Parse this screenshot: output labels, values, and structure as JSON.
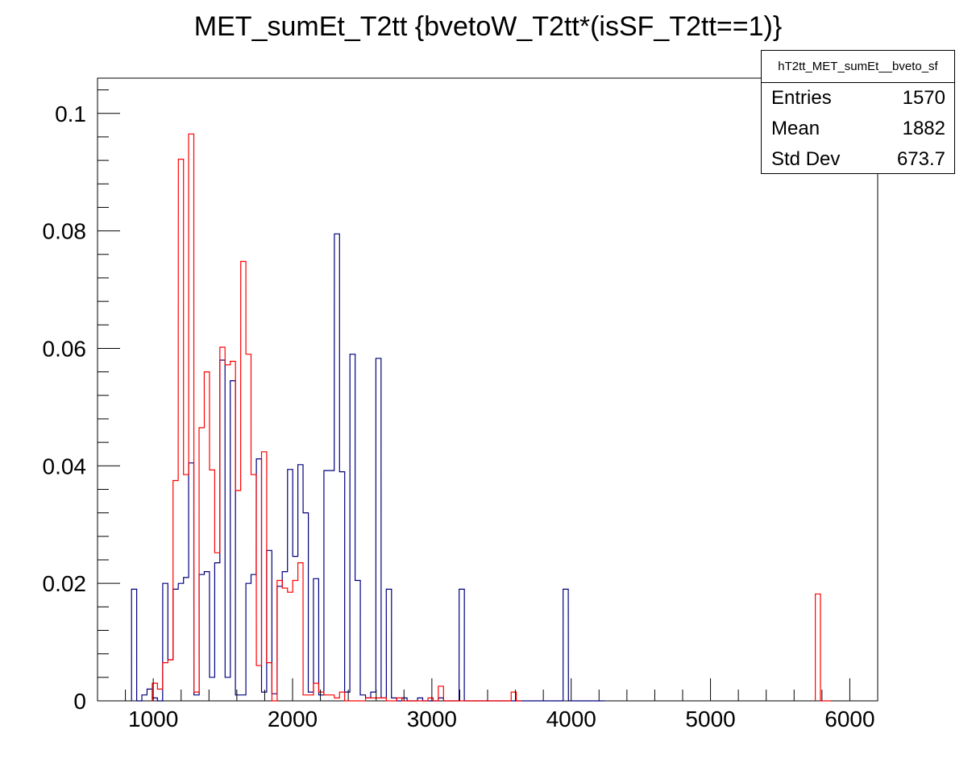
{
  "chart_data": {
    "type": "histogram",
    "title": "MET_sumEt_T2tt {bvetoW_T2tt*(isSF_T2tt==1)}",
    "xlabel": "",
    "ylabel": "",
    "xlim": [
      600,
      6200
    ],
    "ylim": [
      0,
      0.106
    ],
    "bin_width": 37.3,
    "x_ticks": [
      1000,
      2000,
      3000,
      4000,
      5000,
      6000
    ],
    "y_ticks": [
      0,
      0.02,
      0.04,
      0.06,
      0.08,
      0.1
    ],
    "y_tick_labels": [
      "0",
      "0.02",
      "0.04",
      "0.06",
      "0.08",
      "0.1"
    ],
    "grid": false,
    "stats_box": {
      "name": "hT2tt_MET_sumEt__bveto_sf",
      "rows": [
        {
          "label": "Entries",
          "value": "1570"
        },
        {
          "label": "Mean",
          "value": "1882"
        },
        {
          "label": "Std Dev",
          "value": "673.7"
        }
      ]
    },
    "series": [
      {
        "color": "#00007f",
        "x": [
          844,
          881,
          918,
          956,
          993,
          1030,
          1068,
          1105,
          1142,
          1180,
          1217,
          1254,
          1292,
          1329,
          1366,
          1404,
          1441,
          1478,
          1516,
          1553,
          1590,
          1628,
          1665,
          1702,
          1740,
          1777,
          1814,
          1852,
          1889,
          1926,
          1964,
          2001,
          2038,
          2076,
          2113,
          2150,
          2188,
          2225,
          2262,
          2300,
          2337,
          2374,
          2412,
          2449,
          2486,
          2524,
          2561,
          2598,
          2636,
          2673,
          2710,
          2748,
          2785,
          2822,
          2860,
          2897,
          2934,
          2972,
          3009,
          3046,
          3084,
          3121,
          3158,
          3196,
          3233,
          3270,
          3308,
          3345,
          3382,
          3420,
          3457,
          3494,
          3532,
          3569,
          3606,
          3644,
          3681,
          3718,
          3756,
          3793,
          3830,
          3868,
          3905,
          3942,
          3980,
          4017,
          4054,
          4092,
          4129,
          4166,
          4204
        ],
        "values": [
          0.019,
          0,
          0.001,
          0.002,
          0.0005,
          0,
          0.02,
          0.007,
          0.019,
          0.02,
          0.021,
          0.0405,
          0.001,
          0.0215,
          0.022,
          0.004,
          0.0235,
          0.058,
          0.004,
          0.0545,
          0.001,
          0.001,
          0.02,
          0.0215,
          0.0412,
          0.0015,
          0.0256,
          0.0012,
          0.0195,
          0.022,
          0.0394,
          0.0246,
          0.0402,
          0.032,
          0.0015,
          0.0208,
          0.001,
          0.0392,
          0.0392,
          0.0795,
          0.039,
          0.0015,
          0.059,
          0.0205,
          0.001,
          0.0005,
          0.0015,
          0.0583,
          0.0005,
          0.019,
          0.0005,
          0,
          0.0005,
          0,
          0,
          0.0005,
          0,
          0,
          0,
          0.0005,
          0,
          0,
          0,
          0.019,
          0,
          0,
          0,
          0,
          0,
          0,
          0,
          0,
          0,
          0,
          0,
          0,
          0,
          0,
          0,
          0,
          0,
          0,
          0,
          0.019,
          0,
          0,
          0,
          0,
          0,
          0,
          0
        ]
      },
      {
        "color": "#ff0000",
        "x": [
          993,
          1030,
          1068,
          1105,
          1142,
          1180,
          1217,
          1254,
          1292,
          1329,
          1366,
          1404,
          1441,
          1478,
          1516,
          1553,
          1590,
          1628,
          1665,
          1702,
          1740,
          1777,
          1814,
          1852,
          1889,
          1926,
          1964,
          2001,
          2038,
          2076,
          2113,
          2150,
          2188,
          2225,
          2262,
          2300,
          2337,
          2374,
          2412,
          2449,
          2486,
          2524,
          2561,
          2598,
          2636,
          2673,
          2710,
          2748,
          2785,
          2822,
          2860,
          2897,
          2934,
          2972,
          3009,
          3046,
          3084,
          3121,
          3158,
          3196,
          3233,
          3270,
          3308,
          3345,
          3382,
          3420,
          3457,
          3494,
          3532,
          3569,
          3606,
          5752,
          5789,
          5826
        ],
        "values": [
          0.003,
          0.002,
          0.0065,
          0.007,
          0.0375,
          0.0922,
          0.0385,
          0.0965,
          0.0015,
          0.0465,
          0.056,
          0.0393,
          0.0252,
          0.0602,
          0.0572,
          0.0578,
          0.0358,
          0.0748,
          0.059,
          0.0385,
          0.006,
          0.0424,
          0.0065,
          0.0,
          0.0205,
          0.0192,
          0.0185,
          0.0205,
          0.0235,
          0.001,
          0.001,
          0.003,
          0.0015,
          0.001,
          0.001,
          0.0005,
          0.0015,
          0,
          0,
          0,
          0,
          0.0005,
          0.0005,
          0.0005,
          0.0005,
          0,
          0,
          0.0005,
          0,
          0,
          0,
          0,
          0,
          0.0005,
          0,
          0.0025,
          0,
          0,
          0,
          0,
          0,
          0,
          0,
          0,
          0,
          0,
          0,
          0,
          0,
          0.0015,
          0,
          0.0182,
          0,
          0
        ]
      }
    ]
  }
}
